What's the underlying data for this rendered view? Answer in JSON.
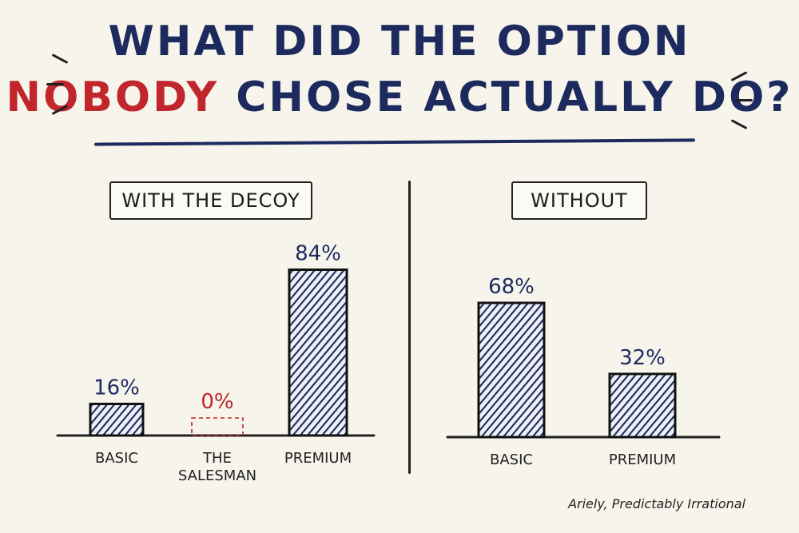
{
  "title": {
    "line1": "WHAT DID THE OPTION",
    "line2_accent": "NOBODY",
    "line2_rest": "CHOSE ACTUALLY DO?"
  },
  "colors": {
    "navy": "#1c2a5e",
    "red": "#c0262b",
    "background": "#f7f4ec",
    "ink": "#222222"
  },
  "panels": {
    "left_label": "WITH THE DECOY",
    "right_label": "WITHOUT"
  },
  "credit": "Ariely, Predictably Irrational",
  "chart_data": [
    {
      "type": "bar",
      "title": "WITH THE DECOY",
      "categories": [
        "BASIC",
        "THE SALESMAN",
        "PREMIUM"
      ],
      "category_lines": [
        [
          "BASIC"
        ],
        [
          "THE",
          "SALESMAN"
        ],
        [
          "PREMIUM"
        ]
      ],
      "values": [
        16,
        0,
        84
      ],
      "value_labels": [
        "16%",
        "0%",
        "84%"
      ],
      "highlight": [
        false,
        true,
        false
      ],
      "ylim": [
        0,
        100
      ],
      "grid": false,
      "xlabel": "",
      "ylabel": ""
    },
    {
      "type": "bar",
      "title": "WITHOUT",
      "categories": [
        "BASIC",
        "PREMIUM"
      ],
      "category_lines": [
        [
          "BASIC"
        ],
        [
          "PREMIUM"
        ]
      ],
      "values": [
        68,
        32
      ],
      "value_labels": [
        "68%",
        "32%"
      ],
      "highlight": [
        false,
        false
      ],
      "ylim": [
        0,
        100
      ],
      "grid": false,
      "xlabel": "",
      "ylabel": ""
    }
  ]
}
